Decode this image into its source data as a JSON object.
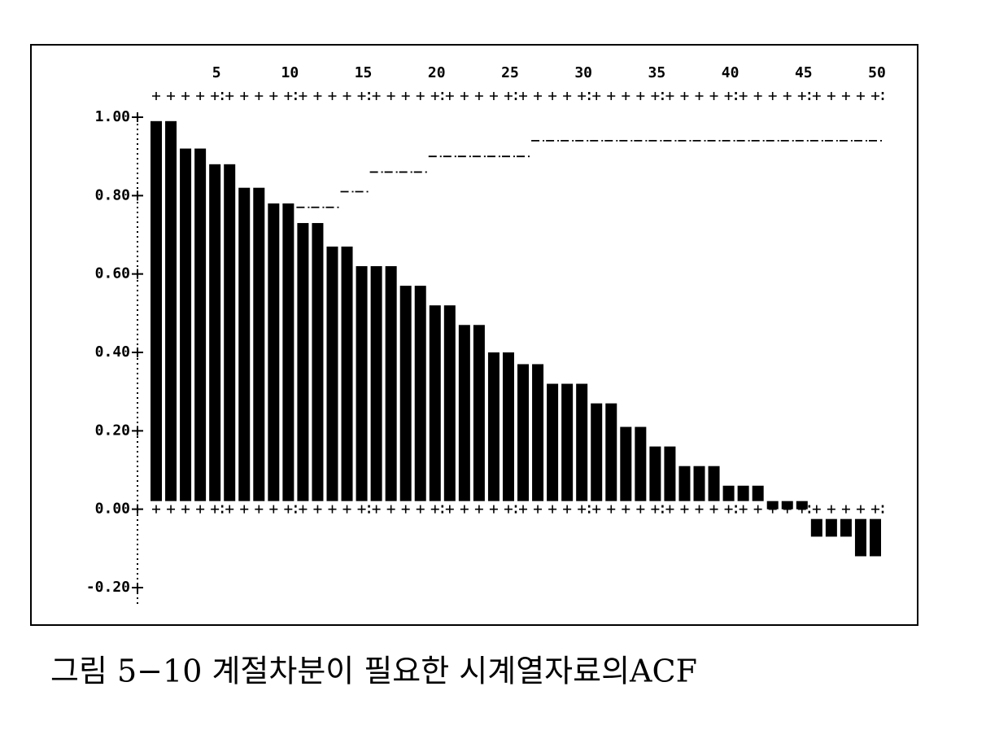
{
  "chart_data": {
    "type": "bar",
    "caption": "그림 5−10  계절차분이 필요한 시계열자료의ACF",
    "x": [
      1,
      2,
      3,
      4,
      5,
      6,
      7,
      8,
      9,
      10,
      11,
      12,
      13,
      14,
      15,
      16,
      17,
      18,
      19,
      20,
      21,
      22,
      23,
      24,
      25,
      26,
      27,
      28,
      29,
      30,
      31,
      32,
      33,
      34,
      35,
      36,
      37,
      38,
      39,
      40,
      41,
      42,
      43,
      44,
      45,
      46,
      47,
      48,
      49,
      50
    ],
    "series": [
      {
        "name": "ACF",
        "color": "#000000",
        "values": [
          0.99,
          0.99,
          0.92,
          0.92,
          0.88,
          0.88,
          0.82,
          0.82,
          0.78,
          0.78,
          0.73,
          0.73,
          0.67,
          0.67,
          0.62,
          0.62,
          0.62,
          0.57,
          0.57,
          0.52,
          0.52,
          0.47,
          0.47,
          0.4,
          0.4,
          0.37,
          0.37,
          0.32,
          0.32,
          0.32,
          0.27,
          0.27,
          0.21,
          0.21,
          0.16,
          0.16,
          0.11,
          0.11,
          0.11,
          0.06,
          0.06,
          0.06,
          0,
          0,
          0,
          -0.07,
          -0.07,
          -0.07,
          -0.12,
          -0.12
        ]
      },
      {
        "name": "Upper limit",
        "color": "#000000",
        "values": [
          null,
          null,
          null,
          null,
          null,
          null,
          null,
          null,
          null,
          null,
          0.77,
          0.77,
          0.77,
          0.81,
          0.81,
          0.86,
          0.86,
          0.86,
          0.86,
          0.9,
          0.9,
          0.9,
          0.9,
          0.9,
          0.9,
          0.9,
          0.94,
          0.94,
          0.94,
          0.94,
          0.94,
          0.94,
          0.94,
          0.94,
          0.94,
          0.94,
          0.94,
          0.94,
          0.94,
          0.94,
          0.94,
          0.94,
          0.94,
          0.94,
          0.94,
          0.94,
          0.94,
          0.94,
          0.94,
          0.94
        ]
      }
    ],
    "xlim": [
      1,
      50
    ],
    "xticks": [
      5,
      10,
      15,
      20,
      25,
      30,
      35,
      40,
      45,
      50
    ],
    "ylim": [
      -0.2,
      1.0
    ],
    "yticks": [
      {
        "value": -0.2,
        "label": "-0.20"
      },
      {
        "value": 0,
        "label": "0.00"
      },
      {
        "value": 0.2,
        "label": "0.20"
      },
      {
        "value": 0.4,
        "label": "0.40"
      },
      {
        "value": 0.6,
        "label": "0.60"
      },
      {
        "value": 0.8,
        "label": "0.80"
      },
      {
        "value": 1.0,
        "label": "1.00"
      }
    ]
  }
}
